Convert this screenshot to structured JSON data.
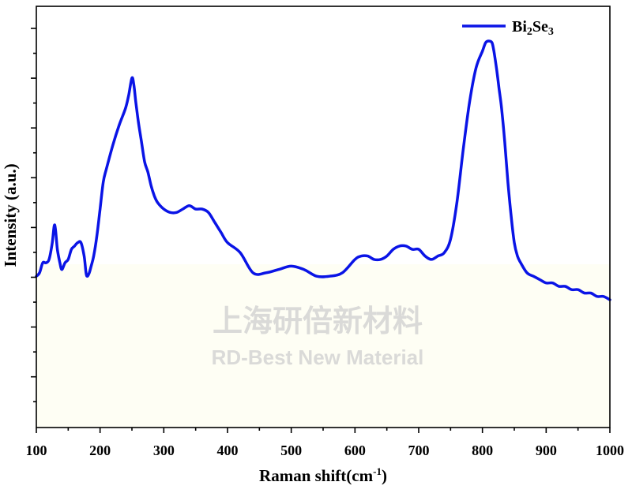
{
  "chart_data": {
    "type": "line",
    "title": "",
    "xlabel": "Raman shift(cm-1)",
    "xlabel_main": "Raman shift(cm",
    "xlabel_sup": "-1",
    "xlabel_close": ")",
    "ylabel": "Intensity (a.u.)",
    "xlim": [
      100,
      1000
    ],
    "ylim": [
      0,
      100
    ],
    "x_ticks": [
      100,
      200,
      300,
      400,
      500,
      600,
      700,
      800,
      900,
      1000
    ],
    "y_tick_labels_shown": false,
    "grid": false,
    "legend_position": "top-right",
    "series": [
      {
        "name": "Bi2Se3",
        "name_main": "Bi",
        "name_sub1": "2",
        "name_mid": "Se",
        "name_sub2": "3",
        "color": "#0a14e6",
        "x": [
          100,
          105,
          110,
          115,
          120,
          125,
          128,
          130,
          133,
          137,
          140,
          145,
          150,
          155,
          160,
          165,
          170,
          175,
          178,
          180,
          183,
          186,
          190,
          195,
          200,
          205,
          210,
          220,
          230,
          240,
          245,
          250,
          253,
          256,
          260,
          265,
          270,
          275,
          280,
          285,
          290,
          300,
          310,
          320,
          330,
          340,
          350,
          360,
          370,
          380,
          390,
          400,
          420,
          440,
          460,
          480,
          500,
          520,
          540,
          560,
          580,
          600,
          610,
          620,
          630,
          640,
          650,
          660,
          670,
          680,
          690,
          700,
          710,
          720,
          730,
          740,
          750,
          760,
          770,
          780,
          790,
          800,
          805,
          810,
          815,
          818,
          822,
          826,
          830,
          835,
          840,
          845,
          850,
          855,
          860,
          870,
          880,
          890,
          900,
          910,
          920,
          930,
          940,
          950,
          960,
          970,
          980,
          990,
          1000
        ],
        "y": [
          30,
          31,
          34,
          34,
          35,
          40,
          45,
          44,
          38,
          34,
          32,
          34,
          35,
          38,
          39,
          40,
          40,
          36,
          31,
          30,
          31,
          33,
          36,
          42,
          50,
          58,
          62,
          69,
          75,
          80,
          84,
          89,
          87,
          82,
          76,
          70,
          64,
          61,
          57,
          54,
          52,
          50,
          49,
          49,
          50,
          51,
          50,
          50,
          49,
          46,
          43,
          40,
          37,
          31,
          31,
          32,
          33,
          32,
          30,
          30,
          31,
          35,
          36,
          36,
          35,
          35,
          36,
          38,
          39,
          39,
          38,
          38,
          36,
          35,
          36,
          37,
          41,
          52,
          68,
          82,
          92,
          97,
          99.5,
          100,
          99.5,
          97,
          92,
          86,
          80,
          70,
          58,
          48,
          40,
          36,
          34,
          31,
          30,
          29,
          28,
          28,
          27,
          27,
          26,
          26,
          25,
          25,
          24,
          24,
          23
        ]
      }
    ]
  },
  "watermark": {
    "line1": "上海研倍新材料",
    "line2": "RD-Best New Material"
  },
  "colors": {
    "line": "#0a14e6",
    "lower_band": "#fefef4"
  }
}
